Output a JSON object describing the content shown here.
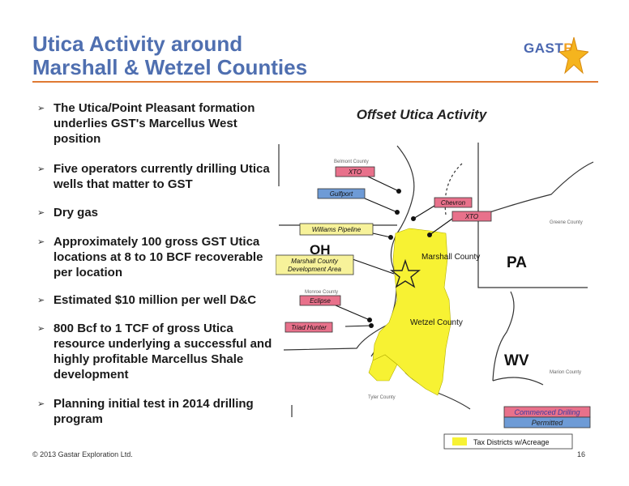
{
  "slide": {
    "title_line1": "Utica Activity around",
    "title_line2": "Marshall & Wetzel Counties",
    "logo_text": "GAST",
    "logo_text_end": "R",
    "bullets": [
      "The Utica/Point Pleasant formation underlies GST's Marcellus West position",
      "Five operators currently drilling Utica wells that matter to GST",
      "Dry gas",
      "Approximately 100 gross GST Utica locations at 8 to 10 BCF recoverable per location",
      "Estimated $10 million per well D&C",
      "800 Bcf to 1 TCF of gross Utica resource underlying a successful and highly profitable Marcellus Shale development",
      "Planning initial test in 2014 drilling program"
    ],
    "footer_copyright": "© 2013 Gastar Exploration Ltd.",
    "page_number": "16"
  },
  "map": {
    "title": "Offset Utica Activity",
    "labels": {
      "xto1": "XTO",
      "gulfport": "Gulfport",
      "chevron": "Chevron",
      "xto2": "XTO",
      "williams": "Williams Pipeline",
      "marshall_dev_line1": "Marshall County",
      "marshall_dev_line2": "Development Area",
      "eclipse": "Eclipse",
      "triad": "Triad Hunter"
    },
    "counties": {
      "belmont": "Belmont County",
      "greene": "Greene County",
      "monroe": "Monroe County",
      "marshall": "Marshall County",
      "wetzel": "Wetzel County",
      "marion": "Marion County",
      "tyler": "Tyler County"
    },
    "states": {
      "oh": "OH",
      "pa": "PA",
      "wv": "WV"
    },
    "legend": {
      "commenced": "Commenced Drilling",
      "permitted": "Permitted",
      "tax": "Tax Districts w/Acreage"
    },
    "colors": {
      "commenced": "#e8718b",
      "permitted": "#6e9bd6",
      "acreage": "#f7f233",
      "pipeline": "#f7f29a",
      "title": "#4f6fb0",
      "rule": "#e07a33"
    }
  }
}
